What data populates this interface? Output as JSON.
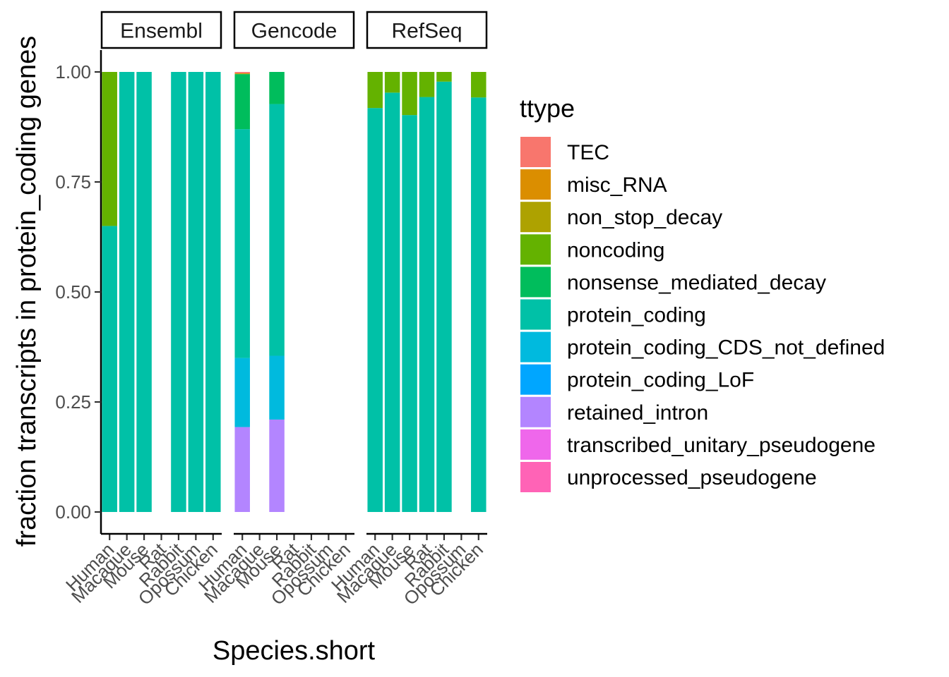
{
  "chart_data": {
    "type": "bar",
    "stacked": true,
    "xlabel": "Species.short",
    "ylabel": "fraction transcripts in protein_coding genes",
    "ylim": [
      0,
      1.05
    ],
    "yticks": [
      0.0,
      0.25,
      0.5,
      0.75,
      1.0
    ],
    "ytick_labels": [
      "0.00",
      "0.25",
      "0.50",
      "0.75",
      "1.00"
    ],
    "categories": [
      "Human",
      "Macaque",
      "Mouse",
      "Rat",
      "Rabbit",
      "Opossum",
      "Chicken"
    ],
    "legend_title": "ttype",
    "legend_placement": "right",
    "grid": false,
    "ttypes": [
      {
        "name": "TEC",
        "color": "#F8766D"
      },
      {
        "name": "misc_RNA",
        "color": "#DB8E00"
      },
      {
        "name": "non_stop_decay",
        "color": "#AEA200"
      },
      {
        "name": "noncoding",
        "color": "#64B200"
      },
      {
        "name": "nonsense_mediated_decay",
        "color": "#00BD5C"
      },
      {
        "name": "protein_coding",
        "color": "#00C1A7"
      },
      {
        "name": "protein_coding_CDS_not_defined",
        "color": "#00BADE"
      },
      {
        "name": "protein_coding_LoF",
        "color": "#00A6FF"
      },
      {
        "name": "retained_intron",
        "color": "#B385FF"
      },
      {
        "name": "transcribed_unitary_pseudogene",
        "color": "#EF67EB"
      },
      {
        "name": "unprocessed_pseudogene",
        "color": "#FF63B6"
      }
    ],
    "panels": [
      {
        "name": "Ensembl",
        "bars": {
          "Human": {
            "protein_coding": 0.65,
            "noncoding": 0.35
          },
          "Macaque": {
            "protein_coding": 1.0
          },
          "Mouse": {
            "protein_coding": 1.0
          },
          "Rat": {},
          "Rabbit": {
            "protein_coding": 1.0
          },
          "Opossum": {
            "protein_coding": 1.0
          },
          "Chicken": {
            "protein_coding": 1.0
          }
        }
      },
      {
        "name": "Gencode",
        "bars": {
          "Human": {
            "retained_intron": 0.193,
            "protein_coding_CDS_not_defined": 0.157,
            "protein_coding": 0.52,
            "nonsense_mediated_decay": 0.125,
            "non_stop_decay": 0.001,
            "misc_RNA": 0.001,
            "TEC": 0.003
          },
          "Macaque": {},
          "Mouse": {
            "retained_intron": 0.21,
            "protein_coding_CDS_not_defined": 0.145,
            "protein_coding": 0.572,
            "nonsense_mediated_decay": 0.073
          },
          "Rat": {},
          "Rabbit": {},
          "Opossum": {},
          "Chicken": {}
        }
      },
      {
        "name": "RefSeq",
        "bars": {
          "Human": {
            "protein_coding": 0.918,
            "noncoding": 0.082
          },
          "Macaque": {
            "protein_coding": 0.953,
            "noncoding": 0.047
          },
          "Mouse": {
            "protein_coding": 0.902,
            "noncoding": 0.098
          },
          "Rat": {
            "protein_coding": 0.943,
            "noncoding": 0.057
          },
          "Rabbit": {
            "protein_coding": 0.978,
            "noncoding": 0.022
          },
          "Opossum": {},
          "Chicken": {
            "protein_coding": 0.942,
            "noncoding": 0.058
          }
        }
      }
    ]
  }
}
